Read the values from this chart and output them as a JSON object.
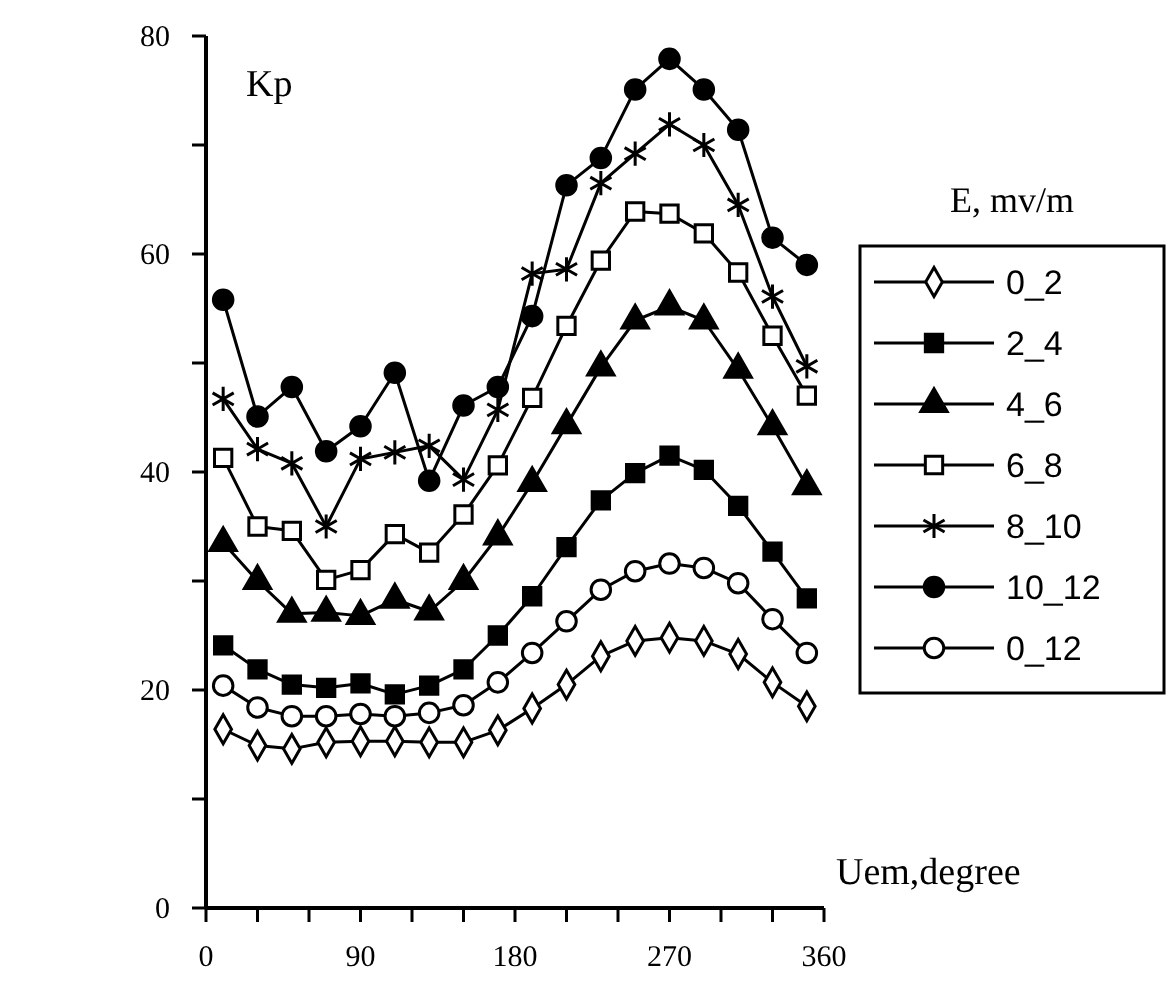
{
  "chart_data": {
    "type": "line",
    "xlabel": "Uem,degree",
    "ylabel": "Kp",
    "legend_title": "E, mv/m",
    "legend": "right",
    "grid": false,
    "line_style": "solid",
    "x": [
      10,
      30,
      50,
      70,
      90,
      110,
      130,
      150,
      170,
      190,
      210,
      230,
      250,
      270,
      290,
      310,
      330,
      350
    ],
    "xlim": [
      0,
      360
    ],
    "xticks": [
      0,
      {
        "value": 30,
        "label": null
      },
      {
        "value": 60,
        "label": null
      },
      90,
      {
        "value": 120,
        "label": null
      },
      {
        "value": 150,
        "label": null
      },
      180,
      {
        "value": 210,
        "label": null
      },
      {
        "value": 240,
        "label": null
      },
      270,
      {
        "value": 300,
        "label": null
      },
      {
        "value": 330,
        "label": null
      },
      360
    ],
    "ylim": [
      0,
      80
    ],
    "yticks": [
      0,
      {
        "value": 10,
        "label": null
      },
      20,
      {
        "value": 30,
        "label": null
      },
      40,
      {
        "value": 50,
        "label": null
      },
      60,
      {
        "value": 70,
        "label": null
      },
      80
    ],
    "series": [
      {
        "name": "0_2",
        "color": "#000000",
        "marker": "diamond",
        "values": [
          16.4,
          14.9,
          14.6,
          15.2,
          15.3,
          15.3,
          15.2,
          15.2,
          16.3,
          18.3,
          20.5,
          23.1,
          24.5,
          24.8,
          24.5,
          23.3,
          20.7,
          18.5
        ]
      },
      {
        "name": "2_4",
        "color": "#000000",
        "marker": "square",
        "values": [
          24.1,
          21.9,
          20.5,
          20.2,
          20.6,
          19.6,
          20.4,
          21.9,
          25.0,
          28.6,
          33.1,
          37.4,
          39.9,
          41.5,
          40.2,
          36.9,
          32.7,
          28.4
        ]
      },
      {
        "name": "4_6",
        "color": "#000000",
        "marker": "triangle",
        "values": [
          33.5,
          30.0,
          27.0,
          27.1,
          26.8,
          28.3,
          27.2,
          30.0,
          34.1,
          39.0,
          44.3,
          49.6,
          53.9,
          55.2,
          53.9,
          49.4,
          44.2,
          38.7
        ]
      },
      {
        "name": "6_8",
        "color": "#000000",
        "marker": "square",
        "values": [
          41.3,
          35.0,
          34.6,
          30.1,
          31.0,
          34.3,
          32.6,
          36.1,
          40.6,
          46.8,
          53.4,
          59.4,
          63.9,
          63.7,
          61.9,
          58.3,
          52.5,
          47.0
        ]
      },
      {
        "name": "8_10",
        "color": "#000000",
        "marker": "cross",
        "values": [
          46.7,
          42.1,
          40.8,
          35.0,
          41.2,
          41.8,
          42.4,
          39.3,
          45.7,
          58.2,
          58.6,
          66.5,
          69.2,
          71.9,
          70.0,
          64.5,
          56.1,
          49.7
        ]
      },
      {
        "name": "10_12",
        "color": "#000000",
        "marker": "circle",
        "values": [
          55.8,
          45.1,
          47.8,
          41.9,
          44.2,
          49.1,
          39.2,
          46.1,
          47.8,
          54.3,
          66.3,
          68.8,
          75.1,
          77.9,
          75.1,
          71.4,
          61.5,
          59.0
        ]
      },
      {
        "name": "0_12",
        "color": "#000000",
        "marker": "circle",
        "values": [
          20.4,
          18.4,
          17.6,
          17.6,
          17.8,
          17.6,
          17.9,
          18.6,
          20.7,
          23.4,
          26.3,
          29.2,
          30.9,
          31.6,
          31.2,
          29.8,
          26.5,
          23.4
        ]
      }
    ]
  }
}
